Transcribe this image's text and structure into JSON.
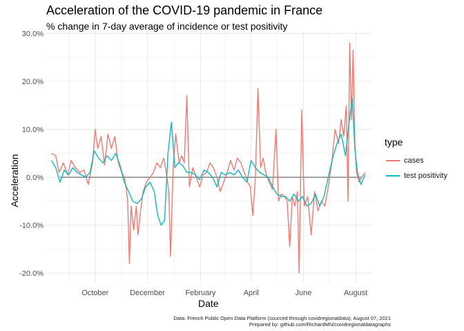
{
  "title": "Acceleration of the COVID-19 pandemic in France",
  "subtitle": "% change in 7-day average of incidence or test positivity",
  "caption_line1": "Data: French Public Open Data Platform (sourced through covidregionaldata), August 07, 2021",
  "caption_line2": "Prepared by: github.com/RichardMN/covidregionaldatagraphs",
  "colors": {
    "cases": "#F8766D",
    "test_positivity": "#00BFC4",
    "grid": "#ebebeb",
    "zero": "#333333"
  },
  "chart_data": {
    "type": "line",
    "xlabel": "Date",
    "ylabel": "Acceleration",
    "x_ticks": [
      "October",
      "December",
      "February",
      "April",
      "June",
      "August"
    ],
    "y_ticks": [
      "30.0%",
      "20.0%",
      "10.0%",
      "0.0%",
      "-10.0%",
      "-20.0%"
    ],
    "ylim": [
      -22,
      30.5
    ],
    "xlim": [
      "2020-08-05",
      "2021-08-21"
    ],
    "grid": true,
    "legend_title": "type",
    "legend_position": "right",
    "series": [
      {
        "name": "cases",
        "points": [
          [
            "2020-08-11",
            5.0
          ],
          [
            "2020-08-16",
            4.5
          ],
          [
            "2020-08-20",
            1.0
          ],
          [
            "2020-08-25",
            3.0
          ],
          [
            "2020-08-30",
            0.5
          ],
          [
            "2020-09-03",
            3.5
          ],
          [
            "2020-09-08",
            2.0
          ],
          [
            "2020-09-13",
            1.0
          ],
          [
            "2020-09-18",
            1.5
          ],
          [
            "2020-09-23",
            -1.5
          ],
          [
            "2020-09-28",
            3.0
          ],
          [
            "2020-10-01",
            10.0
          ],
          [
            "2020-10-04",
            6.0
          ],
          [
            "2020-10-08",
            8.5
          ],
          [
            "2020-10-12",
            2.5
          ],
          [
            "2020-10-16",
            9.0
          ],
          [
            "2020-10-20",
            6.0
          ],
          [
            "2020-10-24",
            8.5
          ],
          [
            "2020-10-28",
            3.0
          ],
          [
            "2020-11-01",
            1.0
          ],
          [
            "2020-11-04",
            0.0
          ],
          [
            "2020-11-06",
            -2.0
          ],
          [
            "2020-11-08",
            -5.0
          ],
          [
            "2020-11-10",
            -18.0
          ],
          [
            "2020-11-12",
            -6.0
          ],
          [
            "2020-11-15",
            -11.0
          ],
          [
            "2020-11-18",
            -6.0
          ],
          [
            "2020-11-20",
            -12.0
          ],
          [
            "2020-11-23",
            -7.0
          ],
          [
            "2020-11-26",
            -3.0
          ],
          [
            "2020-11-30",
            -1.0
          ],
          [
            "2020-12-04",
            0.0
          ],
          [
            "2020-12-08",
            1.0
          ],
          [
            "2020-12-12",
            3.0
          ],
          [
            "2020-12-16",
            2.0
          ],
          [
            "2020-12-20",
            4.0
          ],
          [
            "2020-12-23",
            1.0
          ],
          [
            "2020-12-26",
            -3.0
          ],
          [
            "2020-12-28",
            -16.5
          ],
          [
            "2020-12-31",
            2.0
          ],
          [
            "2021-01-03",
            9.0
          ],
          [
            "2021-01-07",
            3.0
          ],
          [
            "2021-01-10",
            4.5
          ],
          [
            "2021-01-13",
            3.0
          ],
          [
            "2021-01-16",
            17.0
          ],
          [
            "2021-01-19",
            -2.0
          ],
          [
            "2021-01-23",
            2.0
          ],
          [
            "2021-01-27",
            0.0
          ],
          [
            "2021-01-31",
            -2.0
          ],
          [
            "2021-02-04",
            0.5
          ],
          [
            "2021-02-08",
            1.0
          ],
          [
            "2021-02-12",
            3.0
          ],
          [
            "2021-02-16",
            2.0
          ],
          [
            "2021-02-20",
            0.0
          ],
          [
            "2021-02-24",
            -3.0
          ],
          [
            "2021-02-28",
            -1.0
          ],
          [
            "2021-03-04",
            1.0
          ],
          [
            "2021-03-08",
            3.5
          ],
          [
            "2021-03-12",
            1.5
          ],
          [
            "2021-03-16",
            4.0
          ],
          [
            "2021-03-20",
            3.0
          ],
          [
            "2021-03-24",
            1.0
          ],
          [
            "2021-03-28",
            -1.0
          ],
          [
            "2021-03-31",
            -2.0
          ],
          [
            "2021-04-03",
            -8.0
          ],
          [
            "2021-04-06",
            0.0
          ],
          [
            "2021-04-09",
            18.5
          ],
          [
            "2021-04-12",
            2.0
          ],
          [
            "2021-04-15",
            4.0
          ],
          [
            "2021-04-18",
            1.0
          ],
          [
            "2021-04-22",
            -1.0
          ],
          [
            "2021-04-26",
            -2.5
          ],
          [
            "2021-04-30",
            10.0
          ],
          [
            "2021-05-03",
            -5.0
          ],
          [
            "2021-05-06",
            -3.5
          ],
          [
            "2021-05-10",
            -4.0
          ],
          [
            "2021-05-13",
            -5.0
          ],
          [
            "2021-05-16",
            -14.5
          ],
          [
            "2021-05-19",
            -4.0
          ],
          [
            "2021-05-22",
            -6.0
          ],
          [
            "2021-05-25",
            -3.0
          ],
          [
            "2021-05-27",
            -20.0
          ],
          [
            "2021-05-30",
            14.0
          ],
          [
            "2021-06-02",
            -6.0
          ],
          [
            "2021-06-06",
            -4.0
          ],
          [
            "2021-06-10",
            -12.0
          ],
          [
            "2021-06-14",
            -3.0
          ],
          [
            "2021-06-18",
            -7.0
          ],
          [
            "2021-06-22",
            -5.0
          ],
          [
            "2021-06-26",
            -6.0
          ],
          [
            "2021-06-30",
            -2.0
          ],
          [
            "2021-07-04",
            3.0
          ],
          [
            "2021-07-08",
            10.0
          ],
          [
            "2021-07-12",
            7.0
          ],
          [
            "2021-07-15",
            12.0
          ],
          [
            "2021-07-18",
            8.5
          ],
          [
            "2021-07-21",
            15.0
          ],
          [
            "2021-07-23",
            -5.0
          ],
          [
            "2021-07-25",
            28.0
          ],
          [
            "2021-07-27",
            12.0
          ],
          [
            "2021-07-29",
            26.5
          ],
          [
            "2021-07-31",
            7.0
          ],
          [
            "2021-08-02",
            1.0
          ],
          [
            "2021-08-05",
            -1.0
          ],
          [
            "2021-08-08",
            0.0
          ],
          [
            "2021-08-12",
            1.0
          ]
        ]
      },
      {
        "name": "test positivity",
        "points": [
          [
            "2020-08-11",
            3.5
          ],
          [
            "2020-08-16",
            2.0
          ],
          [
            "2020-08-21",
            -1.0
          ],
          [
            "2020-08-26",
            1.5
          ],
          [
            "2020-08-31",
            0.5
          ],
          [
            "2020-09-05",
            2.0
          ],
          [
            "2020-09-10",
            1.0
          ],
          [
            "2020-09-15",
            0.5
          ],
          [
            "2020-09-20",
            0.0
          ],
          [
            "2020-09-25",
            1.0
          ],
          [
            "2020-09-30",
            5.5
          ],
          [
            "2020-10-05",
            4.0
          ],
          [
            "2020-10-10",
            3.0
          ],
          [
            "2020-10-15",
            4.5
          ],
          [
            "2020-10-20",
            3.5
          ],
          [
            "2020-10-25",
            5.0
          ],
          [
            "2020-10-30",
            2.5
          ],
          [
            "2020-11-04",
            -1.0
          ],
          [
            "2020-11-09",
            -3.0
          ],
          [
            "2020-11-14",
            -5.0
          ],
          [
            "2020-11-19",
            -5.5
          ],
          [
            "2020-11-24",
            -4.5
          ],
          [
            "2020-11-29",
            -2.0
          ],
          [
            "2020-12-04",
            -1.0
          ],
          [
            "2020-12-09",
            -3.0
          ],
          [
            "2020-12-13",
            -8.0
          ],
          [
            "2020-12-17",
            -10.0
          ],
          [
            "2020-12-21",
            -9.0
          ],
          [
            "2020-12-25",
            5.0
          ],
          [
            "2020-12-29",
            11.5
          ],
          [
            "2021-01-02",
            2.0
          ],
          [
            "2021-01-06",
            3.0
          ],
          [
            "2021-01-11",
            2.5
          ],
          [
            "2021-01-16",
            1.0
          ],
          [
            "2021-01-21",
            1.0
          ],
          [
            "2021-01-26",
            0.5
          ],
          [
            "2021-01-31",
            -0.5
          ],
          [
            "2021-02-05",
            1.5
          ],
          [
            "2021-02-10",
            1.0
          ],
          [
            "2021-02-15",
            0.0
          ],
          [
            "2021-02-20",
            -2.0
          ],
          [
            "2021-02-25",
            1.0
          ],
          [
            "2021-03-02",
            0.5
          ],
          [
            "2021-03-07",
            1.0
          ],
          [
            "2021-03-12",
            0.5
          ],
          [
            "2021-03-17",
            1.5
          ],
          [
            "2021-03-22",
            0.0
          ],
          [
            "2021-03-27",
            -1.0
          ],
          [
            "2021-04-01",
            3.5
          ],
          [
            "2021-04-06",
            2.0
          ],
          [
            "2021-04-11",
            1.0
          ],
          [
            "2021-04-16",
            0.5
          ],
          [
            "2021-04-21",
            0.0
          ],
          [
            "2021-04-26",
            -2.0
          ],
          [
            "2021-05-01",
            -3.5
          ],
          [
            "2021-05-06",
            -4.0
          ],
          [
            "2021-05-11",
            -4.0
          ],
          [
            "2021-05-16",
            -5.0
          ],
          [
            "2021-05-21",
            -3.5
          ],
          [
            "2021-05-26",
            -5.0
          ],
          [
            "2021-05-31",
            -4.0
          ],
          [
            "2021-06-05",
            -6.0
          ],
          [
            "2021-06-10",
            -5.5
          ],
          [
            "2021-06-15",
            -3.5
          ],
          [
            "2021-06-20",
            -6.0
          ],
          [
            "2021-06-25",
            -4.0
          ],
          [
            "2021-06-30",
            0.0
          ],
          [
            "2021-07-05",
            4.0
          ],
          [
            "2021-07-10",
            7.0
          ],
          [
            "2021-07-15",
            9.0
          ],
          [
            "2021-07-20",
            4.5
          ],
          [
            "2021-07-24",
            11.0
          ],
          [
            "2021-07-28",
            16.5
          ],
          [
            "2021-07-31",
            6.0
          ],
          [
            "2021-08-03",
            1.0
          ],
          [
            "2021-08-07",
            -1.5
          ],
          [
            "2021-08-12",
            0.5
          ]
        ]
      }
    ]
  }
}
